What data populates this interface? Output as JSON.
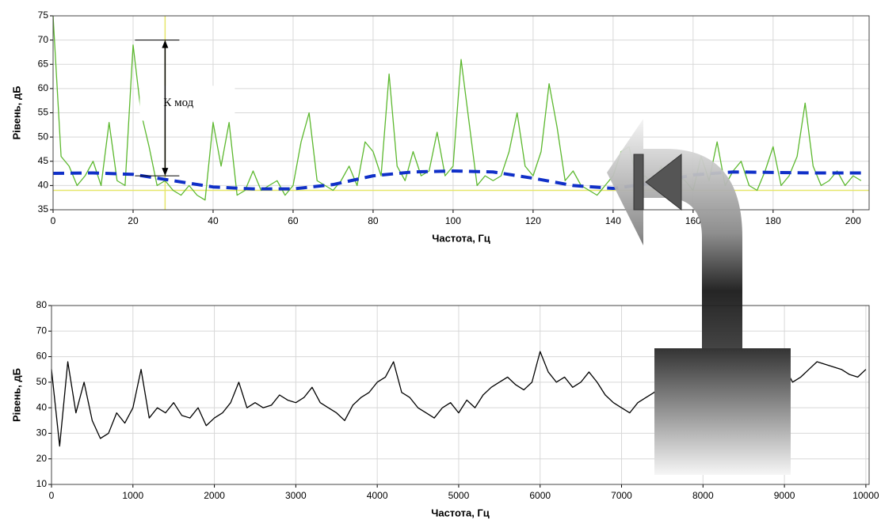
{
  "chart_data": [
    {
      "type": "line",
      "y_label": "Рівень, дБ",
      "x_label": "Частота, Гц",
      "xlim": [
        0,
        204
      ],
      "ylim": [
        35,
        75
      ],
      "xticks": [
        0,
        20,
        40,
        60,
        80,
        100,
        120,
        140,
        160,
        180,
        200
      ],
      "yticks": [
        35,
        40,
        45,
        50,
        55,
        60,
        65,
        70,
        75
      ],
      "grid": true,
      "series": [
        {
          "color": "#5cb82e",
          "style": "solid",
          "x": [
            0,
            2,
            4,
            6,
            8,
            10,
            12,
            14,
            16,
            18,
            20,
            22,
            24,
            26,
            28,
            30,
            32,
            34,
            36,
            38,
            40,
            42,
            44,
            46,
            48,
            50,
            52,
            54,
            56,
            58,
            60,
            62,
            64,
            66,
            68,
            70,
            72,
            74,
            76,
            78,
            80,
            82,
            84,
            86,
            88,
            90,
            92,
            94,
            96,
            98,
            100,
            102,
            104,
            106,
            108,
            110,
            112,
            114,
            116,
            118,
            120,
            122,
            124,
            126,
            128,
            130,
            132,
            134,
            136,
            138,
            140,
            142,
            144,
            146,
            148,
            150,
            152,
            154,
            156,
            158,
            160,
            162,
            164,
            166,
            168,
            170,
            172,
            174,
            176,
            178,
            180,
            182,
            184,
            186,
            188,
            190,
            192,
            194,
            196,
            198,
            200,
            202
          ],
          "values": [
            75,
            46,
            44,
            40,
            42,
            45,
            40,
            53,
            41,
            40,
            69,
            55,
            48,
            40,
            41,
            39,
            38,
            40,
            38,
            37,
            53,
            44,
            53,
            38,
            39,
            43,
            39,
            40,
            41,
            38,
            40,
            49,
            55,
            41,
            40,
            39,
            41,
            44,
            40,
            49,
            47,
            42,
            63,
            44,
            41,
            47,
            42,
            43,
            51,
            42,
            44,
            66,
            53,
            40,
            42,
            41,
            42,
            47,
            55,
            44,
            42,
            47,
            61,
            52,
            41,
            43,
            40,
            39,
            38,
            40,
            42,
            47,
            48,
            41,
            42,
            40,
            44,
            39,
            42,
            41,
            39,
            46,
            41,
            49,
            40,
            43,
            45,
            40,
            39,
            43,
            48,
            40,
            42,
            46,
            57,
            44,
            40,
            41,
            43,
            40,
            42,
            41
          ]
        },
        {
          "color": "#1030c8",
          "style": "dashed",
          "x": [
            0,
            10,
            20,
            30,
            40,
            50,
            60,
            70,
            80,
            90,
            100,
            110,
            120,
            130,
            140,
            150,
            160,
            170,
            180,
            190,
            202
          ],
          "values": [
            42.5,
            42.6,
            42.3,
            41,
            39.7,
            39.3,
            39.3,
            40.2,
            42,
            42.8,
            43,
            42.8,
            41.5,
            40,
            39.4,
            40.5,
            42.2,
            42.8,
            42.7,
            42.6,
            42.6
          ]
        }
      ],
      "reference_lines": {
        "color": "#e6e66a",
        "y": 39,
        "x": 28
      },
      "annotation": {
        "text": "К мод",
        "x": 28,
        "y_top": 70,
        "y_bottom": 42
      }
    },
    {
      "type": "line",
      "y_label": "Рівень, дБ",
      "x_label": "Частота, Гц",
      "xlim": [
        0,
        10040
      ],
      "ylim": [
        10,
        80
      ],
      "xticks": [
        0,
        1000,
        2000,
        3000,
        4000,
        5000,
        6000,
        7000,
        8000,
        9000,
        10000
      ],
      "yticks": [
        10,
        20,
        30,
        40,
        50,
        60,
        70,
        80
      ],
      "grid": true,
      "series": [
        {
          "color": "#000000",
          "style": "solid",
          "x": [
            0,
            100,
            200,
            300,
            400,
            500,
            600,
            700,
            800,
            900,
            1000,
            1100,
            1200,
            1300,
            1400,
            1500,
            1600,
            1700,
            1800,
            1900,
            2000,
            2100,
            2200,
            2300,
            2400,
            2500,
            2600,
            2700,
            2800,
            2900,
            3000,
            3100,
            3200,
            3300,
            3400,
            3500,
            3600,
            3700,
            3800,
            3900,
            4000,
            4100,
            4200,
            4300,
            4400,
            4500,
            4600,
            4700,
            4800,
            4900,
            5000,
            5100,
            5200,
            5300,
            5400,
            5500,
            5600,
            5700,
            5800,
            5900,
            6000,
            6100,
            6200,
            6300,
            6400,
            6500,
            6600,
            6700,
            6800,
            6900,
            7000,
            7100,
            7200,
            7300,
            7400,
            7500,
            7600,
            7700,
            7800,
            7900,
            8000,
            8100,
            8200,
            8300,
            8400,
            8500,
            8600,
            8700,
            8800,
            8900,
            9000,
            9100,
            9200,
            9300,
            9400,
            9500,
            9600,
            9700,
            9800,
            9900,
            10000
          ],
          "values": [
            55,
            25,
            58,
            38,
            50,
            35,
            28,
            30,
            38,
            34,
            40,
            55,
            36,
            40,
            38,
            42,
            37,
            36,
            40,
            33,
            36,
            38,
            42,
            50,
            40,
            42,
            40,
            41,
            45,
            43,
            42,
            44,
            48,
            42,
            40,
            38,
            35,
            41,
            44,
            46,
            50,
            52,
            58,
            46,
            44,
            40,
            38,
            36,
            40,
            42,
            38,
            43,
            40,
            45,
            48,
            50,
            52,
            49,
            47,
            50,
            62,
            54,
            50,
            52,
            48,
            50,
            54,
            50,
            45,
            42,
            40,
            38,
            42,
            44,
            46,
            50,
            54,
            52,
            56,
            60,
            62,
            58,
            56,
            57,
            58,
            56,
            55,
            56,
            60,
            58,
            56,
            50,
            52,
            55,
            58,
            57,
            56,
            55,
            53,
            52,
            55
          ]
        }
      ]
    }
  ]
}
